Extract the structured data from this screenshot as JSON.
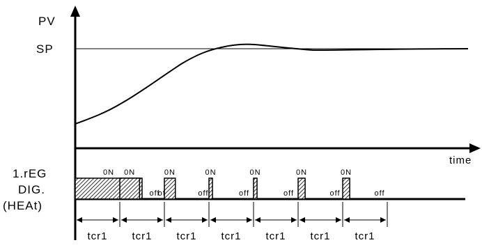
{
  "labels": {
    "pv": "PV",
    "sp": "SP",
    "time": "time",
    "output_line1": "1.rEG",
    "output_line2": "DIG.",
    "output_line3": "(HEAt)",
    "on": "0N",
    "off": "off",
    "cycle": "tcr1"
  },
  "cycles": 7,
  "pulse_on_fractions": [
    1.0,
    0.45,
    0.25,
    0.08,
    0.08,
    0.16,
    0.16
  ],
  "colors": {
    "line": "#000000",
    "hatch": "#000000",
    "background": "#ffffff"
  }
}
